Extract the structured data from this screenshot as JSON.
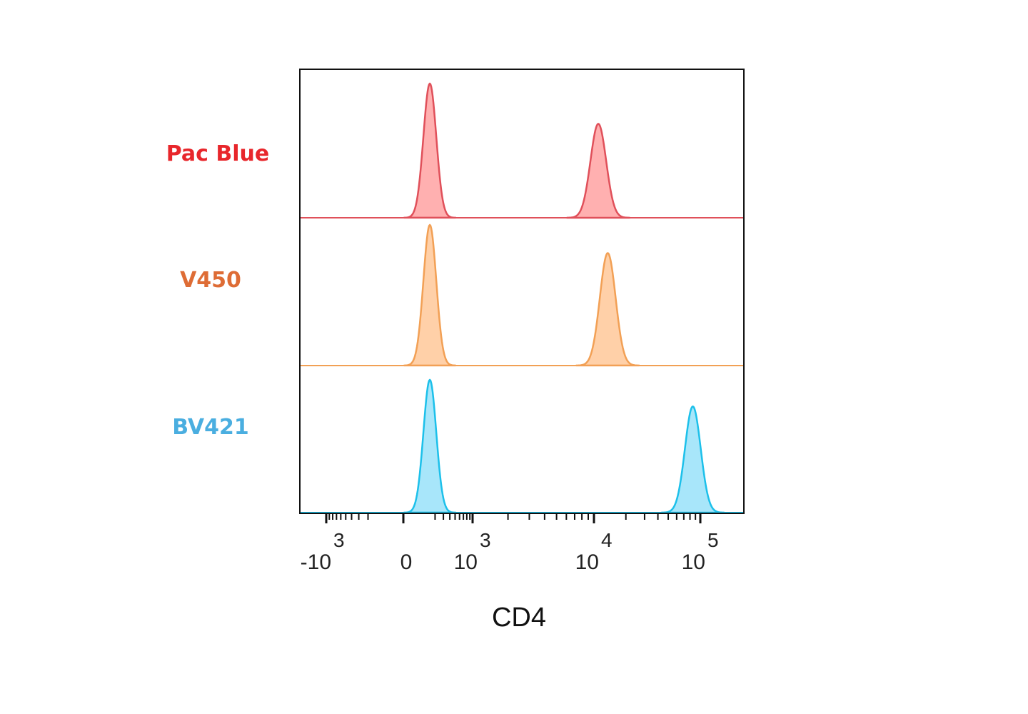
{
  "chart_data": {
    "type": "histogram",
    "xlabel": "CD4",
    "x_scale": "biexponential",
    "xlim": [
      -3000,
      150000
    ],
    "x_ticks": [
      {
        "value": -1000,
        "base": "-10",
        "exp": "3"
      },
      {
        "value": 0,
        "base": "0",
        "exp": ""
      },
      {
        "value": 1000,
        "base": "10",
        "exp": "3"
      },
      {
        "value": 10000,
        "base": "10",
        "exp": "4"
      },
      {
        "value": 100000,
        "base": "10",
        "exp": "5"
      }
    ],
    "series": [
      {
        "name": "Pac Blue",
        "color": "#e8262b",
        "fill": "#ffb0b0",
        "stroke": "#e0505a",
        "peaks": [
          {
            "center": 150,
            "relative_height": 1.0
          },
          {
            "center": 11000,
            "relative_height": 0.7
          }
        ]
      },
      {
        "name": "V450",
        "color": "#de6c35",
        "fill": "#ffd0a8",
        "stroke": "#f2a055",
        "peaks": [
          {
            "center": 150,
            "relative_height": 1.0
          },
          {
            "center": 13500,
            "relative_height": 0.8
          }
        ]
      },
      {
        "name": "BV421",
        "color": "#4aaee0",
        "fill": "#a8e6fa",
        "stroke": "#1cc0ea",
        "peaks": [
          {
            "center": 150,
            "relative_height": 1.0
          },
          {
            "center": 85000,
            "relative_height": 0.8
          }
        ]
      }
    ]
  }
}
